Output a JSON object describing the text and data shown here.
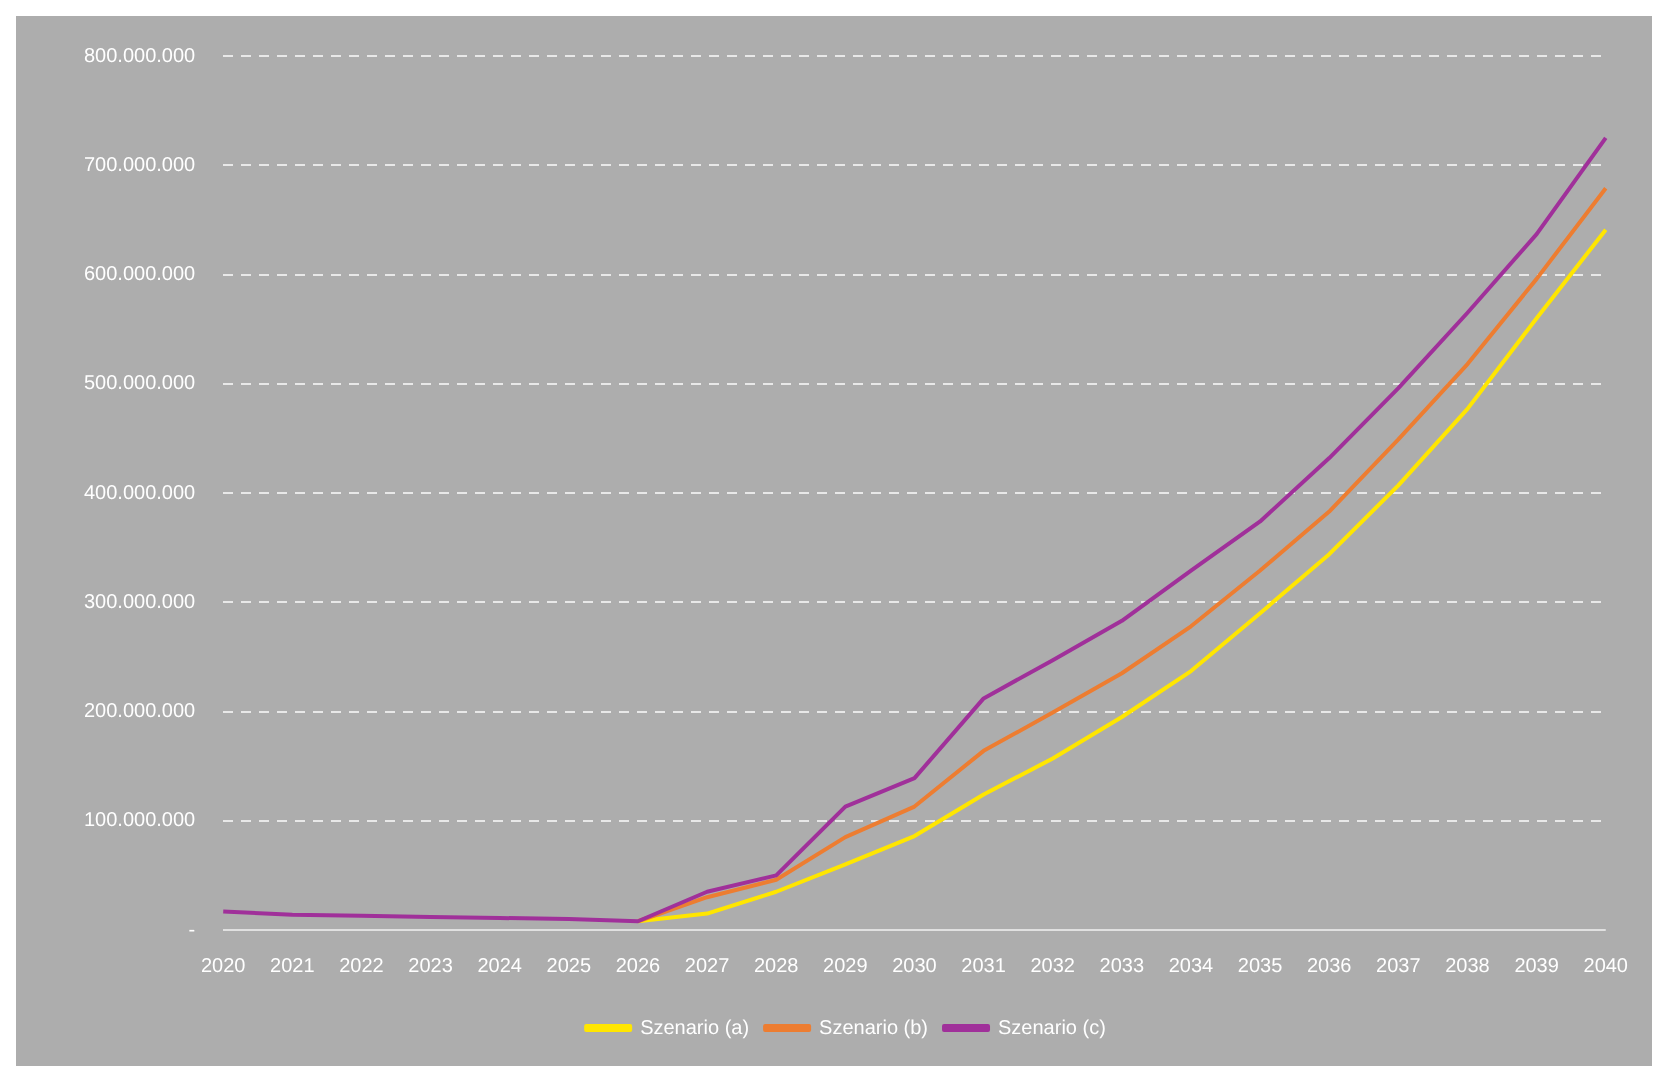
{
  "chart_data": {
    "type": "line",
    "categories": [
      "2020",
      "2021",
      "2022",
      "2023",
      "2024",
      "2025",
      "2026",
      "2027",
      "2028",
      "2029",
      "2030",
      "2031",
      "2032",
      "2033",
      "2034",
      "2035",
      "2036",
      "2037",
      "2038",
      "2039",
      "2040"
    ],
    "series": [
      {
        "name": "Szenario (a)",
        "color": "#ffe600",
        "values": [
          null,
          null,
          null,
          null,
          null,
          null,
          8000000,
          15000000,
          35000000,
          60000000,
          86000000,
          124000000,
          157000000,
          195000000,
          237000000,
          290000000,
          344000000,
          407000000,
          477000000,
          560000000,
          641000000
        ]
      },
      {
        "name": "Szenario (b)",
        "color": "#ed7d31",
        "values": [
          null,
          null,
          null,
          null,
          null,
          null,
          8000000,
          30000000,
          46000000,
          85000000,
          113000000,
          164000000,
          199000000,
          235000000,
          278000000,
          329000000,
          383000000,
          449000000,
          518000000,
          596000000,
          679000000
        ]
      },
      {
        "name": "Szenario (c)",
        "color": "#a0309a",
        "values": [
          17000000,
          14000000,
          13000000,
          12000000,
          11000000,
          10000000,
          8000000,
          35000000,
          50000000,
          113000000,
          139000000,
          212000000,
          247000000,
          283000000,
          329000000,
          374000000,
          432000000,
          496000000,
          565000000,
          637000000,
          725000000
        ]
      }
    ],
    "ylim": [
      0,
      800000000
    ],
    "yticks": [
      {
        "value": 0,
        "label": "-"
      },
      {
        "value": 100000000,
        "label": "100.000.000"
      },
      {
        "value": 200000000,
        "label": "200.000.000"
      },
      {
        "value": 300000000,
        "label": "300.000.000"
      },
      {
        "value": 400000000,
        "label": "400.000.000"
      },
      {
        "value": 500000000,
        "label": "500.000.000"
      },
      {
        "value": 600000000,
        "label": "600.000.000"
      },
      {
        "value": 700000000,
        "label": "700.000.000"
      },
      {
        "value": 800000000,
        "label": "800.000.000"
      }
    ],
    "grid": "y",
    "legend": "bottom",
    "marker": "none",
    "line_style": "solid"
  }
}
